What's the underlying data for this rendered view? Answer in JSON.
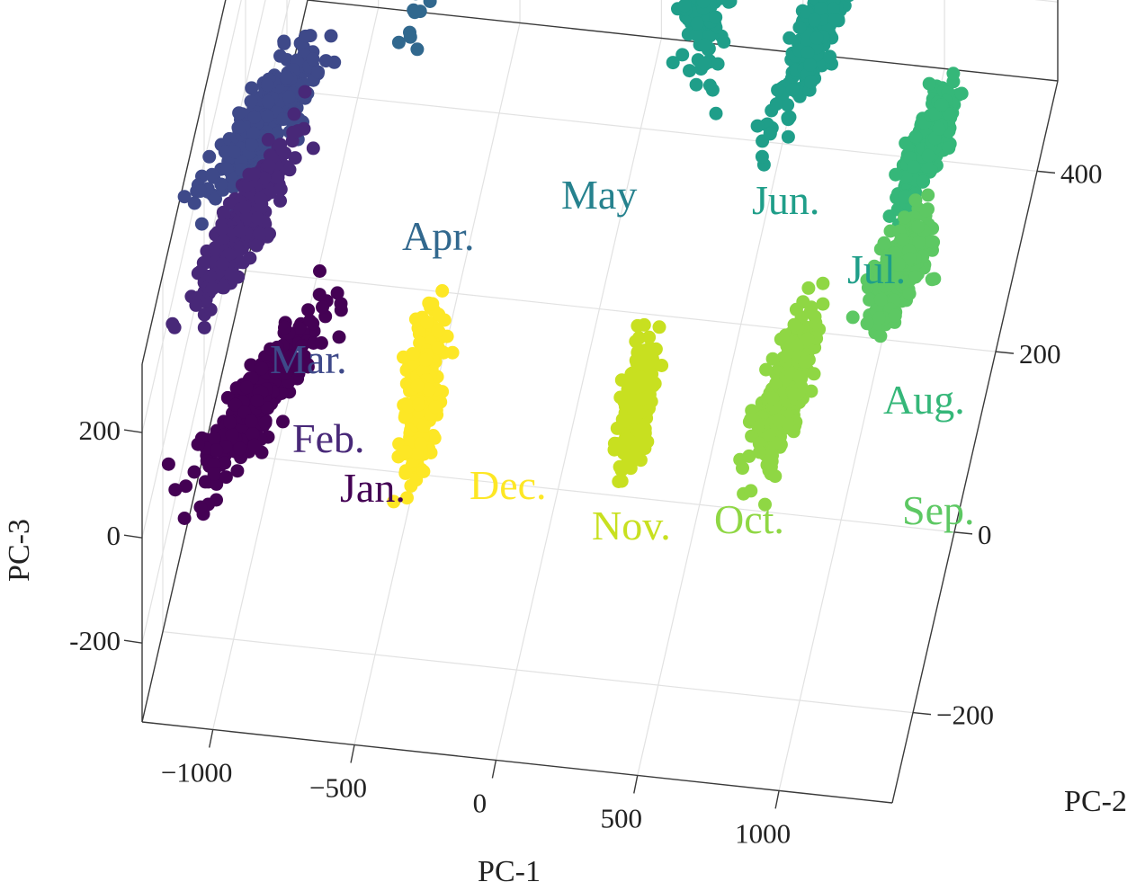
{
  "chart_data": {
    "type": "scatter",
    "projection": "3d",
    "axes": {
      "x": {
        "label": "PC-1",
        "ticks": [
          -1000,
          -500,
          0,
          500,
          1000
        ],
        "tick_labels": [
          "−1000",
          "−500",
          "0",
          "500",
          "1000"
        ],
        "range": [
          -1250,
          1400
        ]
      },
      "y": {
        "label": "PC-2",
        "ticks": [
          -200,
          0,
          200,
          400
        ],
        "tick_labels": [
          "−200",
          "0",
          "200",
          "400"
        ],
        "range": [
          -300,
          500
        ]
      },
      "z": {
        "label": "PC-3",
        "ticks": [
          -200,
          0,
          200
        ],
        "tick_labels": [
          "-200",
          "0",
          "200"
        ],
        "range": [
          -350,
          330
        ]
      }
    },
    "grid": true,
    "legend": "none",
    "series": [
      {
        "name": "Jan.",
        "color": "#440154",
        "center": [
          -950,
          -130,
          0
        ],
        "spread": [
          130,
          45,
          20
        ],
        "orient": 0.35
      },
      {
        "name": "Feb.",
        "color": "#482878",
        "center": [
          -1150,
          50,
          0
        ],
        "spread": [
          100,
          40,
          20
        ],
        "orient": 0.4
      },
      {
        "name": "Mar.",
        "color": "#3e4989",
        "center": [
          -1150,
          140,
          30
        ],
        "spread": [
          120,
          40,
          25
        ],
        "orient": 0.3
      },
      {
        "name": "Apr.",
        "color": "#31688e",
        "center": [
          -700,
          420,
          20
        ],
        "spread": [
          65,
          40,
          25
        ],
        "orient": 1.3
      },
      {
        "name": "May",
        "color": "#26828e",
        "center": [
          -200,
          460,
          30
        ],
        "spread": [
          25,
          55,
          45
        ],
        "orient": 1.5
      },
      {
        "name": "Jun.",
        "color": "#1f9e89",
        "center": [
          250,
          360,
          30
        ],
        "spread": [
          30,
          150,
          25
        ],
        "orient": 1.1
      },
      {
        "name": "Jul.",
        "color": "#1f9e89",
        "center": [
          700,
          330,
          20
        ],
        "spread": [
          90,
          45,
          25
        ],
        "orient": 0.6
      },
      {
        "name": "Aug.",
        "color": "#35b779",
        "center": [
          1150,
          220,
          0
        ],
        "spread": [
          60,
          40,
          20
        ],
        "orient": 0.4
      },
      {
        "name": "Sep.",
        "color": "#5dc863",
        "center": [
          1150,
          80,
          0
        ],
        "spread": [
          70,
          35,
          25
        ],
        "orient": 0.3
      },
      {
        "name": "Oct.",
        "color": "#8fd744",
        "center": [
          850,
          -70,
          0
        ],
        "spread": [
          60,
          40,
          40
        ],
        "orient": 0.5
      },
      {
        "name": "Nov.",
        "color": "#c8e020",
        "center": [
          350,
          -100,
          0
        ],
        "spread": [
          30,
          60,
          30
        ],
        "orient": 1.5
      },
      {
        "name": "Dec.",
        "color": "#fde725",
        "center": [
          -400,
          -110,
          0
        ],
        "spread": [
          35,
          90,
          25
        ],
        "orient": 1.0
      }
    ]
  }
}
